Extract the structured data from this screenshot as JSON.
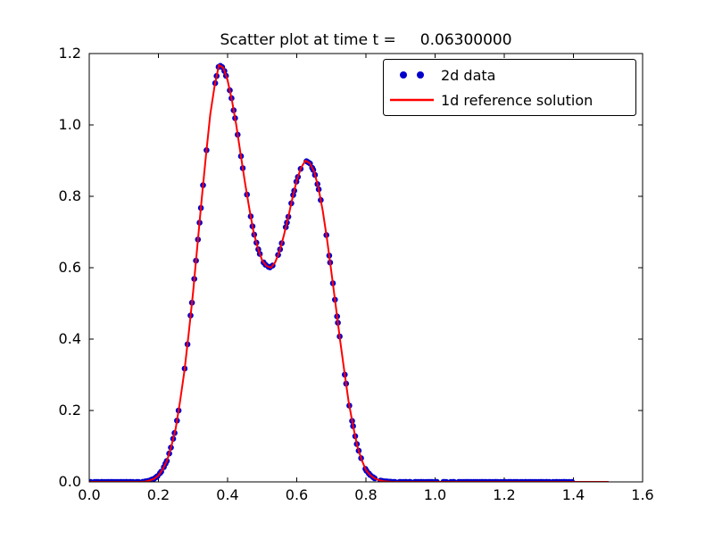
{
  "chart_data": {
    "type": "scatter",
    "title": "Scatter plot at time t =     0.06300000",
    "xlabel": "",
    "ylabel": "",
    "xlim": [
      0.0,
      1.6
    ],
    "ylim": [
      0.0,
      1.2
    ],
    "xticks": [
      0.0,
      0.2,
      0.4,
      0.6,
      0.8,
      1.0,
      1.2,
      1.4,
      1.6
    ],
    "xtick_labels": [
      "0.0",
      "0.2",
      "0.4",
      "0.6",
      "0.8",
      "1.0",
      "1.2",
      "1.4",
      "1.6"
    ],
    "yticks": [
      0.0,
      0.2,
      0.4,
      0.6,
      0.8,
      1.0,
      1.2
    ],
    "ytick_labels": [
      "0.0",
      "0.2",
      "0.4",
      "0.6",
      "0.8",
      "1.0",
      "1.2"
    ],
    "grid": false,
    "legend_position": "upper right",
    "shared_curve": true,
    "x": [
      0.0,
      0.05,
      0.1,
      0.15,
      0.1625,
      0.175,
      0.1875,
      0.2,
      0.2125,
      0.225,
      0.2375,
      0.25,
      0.2625,
      0.275,
      0.2875,
      0.3,
      0.3125,
      0.325,
      0.3375,
      0.35,
      0.3625,
      0.375,
      0.3875,
      0.4,
      0.4125,
      0.425,
      0.4375,
      0.45,
      0.4625,
      0.475,
      0.4875,
      0.5,
      0.5125,
      0.525,
      0.5375,
      0.55,
      0.5625,
      0.575,
      0.5875,
      0.6,
      0.6125,
      0.625,
      0.6375,
      0.65,
      0.6625,
      0.675,
      0.6875,
      0.7,
      0.7125,
      0.725,
      0.7375,
      0.75,
      0.7625,
      0.775,
      0.7875,
      0.8,
      0.8125,
      0.825,
      0.8375,
      0.85,
      0.8625,
      0.875,
      0.9,
      0.95,
      1.0,
      1.05,
      1.1,
      1.15,
      1.2,
      1.25,
      1.3,
      1.35,
      1.4,
      1.45,
      1.5
    ],
    "y": [
      0,
      0,
      0,
      0,
      0.001,
      0.004,
      0.009,
      0.018,
      0.035,
      0.06,
      0.1,
      0.15,
      0.225,
      0.31,
      0.415,
      0.53,
      0.66,
      0.79,
      0.915,
      1.03,
      1.11,
      1.168,
      1.16,
      1.125,
      1.07,
      1.0,
      0.92,
      0.84,
      0.768,
      0.7,
      0.655,
      0.62,
      0.605,
      0.6,
      0.615,
      0.645,
      0.69,
      0.74,
      0.795,
      0.845,
      0.88,
      0.9,
      0.893,
      0.87,
      0.825,
      0.76,
      0.68,
      0.59,
      0.495,
      0.4,
      0.31,
      0.225,
      0.158,
      0.1,
      0.062,
      0.033,
      0.019,
      0.01,
      0.005,
      0.002,
      0.001,
      0,
      0,
      0,
      0,
      0,
      0,
      0,
      0,
      0,
      0,
      0,
      0,
      0,
      0
    ],
    "series": [
      {
        "name": "2d data",
        "type": "scatter",
        "marker": "circle",
        "color": "#0000cc",
        "x_end": 1.4
      },
      {
        "name": "1d reference solution",
        "type": "line",
        "color": "#ff0000",
        "x_end": 1.5
      }
    ]
  }
}
